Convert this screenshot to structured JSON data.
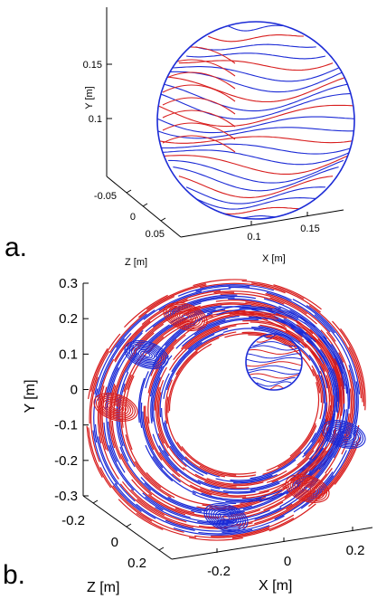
{
  "chart_data": [
    {
      "type": "line",
      "panel_label": "a.",
      "view": "3d",
      "xlabel": "X [m]",
      "ylabel": "Y [m]",
      "zlabel": "Z [m]",
      "x_ticks": [
        "0.1",
        "0.15"
      ],
      "y_ticks": [
        "0.1",
        "0.15"
      ],
      "z_ticks": [
        "-0.05",
        "0",
        "0.05"
      ],
      "grid": false,
      "series": [
        {
          "color": "#1c2bd6"
        },
        {
          "color": "#d81e1e"
        }
      ]
    },
    {
      "type": "line",
      "panel_label": "b.",
      "view": "3d",
      "xlabel": "X [m]",
      "ylabel": "Y [m]",
      "zlabel": "Z [m]",
      "x_ticks": [
        "-0.2",
        "0",
        "0.2"
      ],
      "y_ticks": [
        "0.3",
        "0.2",
        "0.1",
        "0",
        "-0.1",
        "-0.2",
        "-0.3"
      ],
      "z_ticks": [
        "-0.2",
        "0",
        "0.2"
      ],
      "grid": false,
      "series": [
        {
          "color": "#1c2bd6"
        },
        {
          "color": "#d81e1e"
        }
      ]
    }
  ]
}
